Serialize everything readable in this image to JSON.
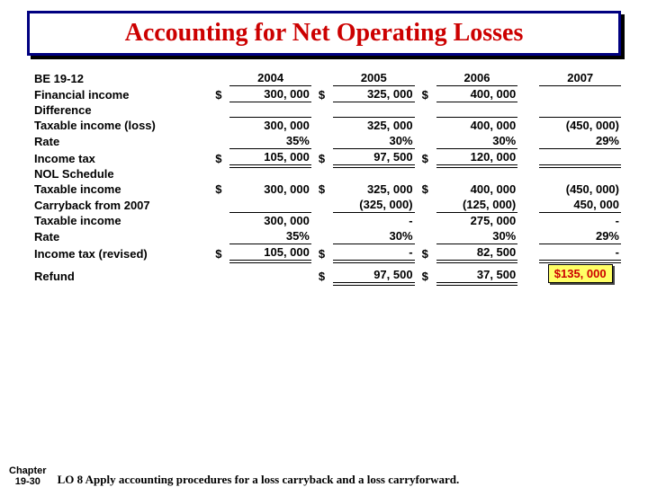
{
  "title": "Accounting for Net Operating Losses",
  "exercise": "BE 19-12",
  "years": [
    "2004",
    "2005",
    "2006",
    "2007"
  ],
  "top": {
    "financial_income": {
      "label": "Financial income",
      "vals": [
        "300, 000",
        "325, 000",
        "400, 000",
        ""
      ],
      "cur": [
        "$",
        "$",
        "$",
        ""
      ],
      "underline": "single"
    },
    "difference": {
      "label": "Difference",
      "vals": [
        "",
        "",
        "",
        ""
      ],
      "cur": [
        "",
        "",
        "",
        ""
      ],
      "underline": "single"
    },
    "taxable_income_loss": {
      "label": "Taxable income (loss)",
      "vals": [
        "300, 000",
        "325, 000",
        "400, 000",
        "(450, 000)"
      ],
      "cur": [
        "",
        "",
        "",
        ""
      ],
      "underline": "none"
    },
    "rate": {
      "label": "Rate",
      "vals": [
        "35%",
        "30%",
        "30%",
        "29%"
      ],
      "cur": [
        "",
        "",
        "",
        ""
      ],
      "underline": "single"
    },
    "income_tax": {
      "label": "Income tax",
      "vals": [
        "105, 000",
        "97, 500",
        "120, 000",
        ""
      ],
      "cur": [
        "$",
        "$",
        "$",
        ""
      ],
      "underline": "double"
    }
  },
  "mid_header": "NOL Schedule",
  "mid": {
    "taxable_income": {
      "label": "Taxable income",
      "vals": [
        "300, 000",
        "325, 000",
        "400, 000",
        "(450, 000)"
      ],
      "cur": [
        "$",
        "$",
        "$",
        ""
      ],
      "underline": "none"
    },
    "carryback": {
      "label": "Carryback from 2007",
      "vals": [
        "",
        "(325, 000)",
        "(125, 000)",
        "450, 000"
      ],
      "cur": [
        "",
        "",
        "",
        ""
      ],
      "underline": "single"
    },
    "taxable_income2": {
      "label": "Taxable income",
      "vals": [
        "300, 000",
        "-",
        "275, 000",
        "-"
      ],
      "cur": [
        "",
        "",
        "",
        ""
      ],
      "underline": "none"
    },
    "rate": {
      "label": "Rate",
      "vals": [
        "35%",
        "30%",
        "30%",
        "29%"
      ],
      "cur": [
        "",
        "",
        "",
        ""
      ],
      "underline": "single"
    },
    "income_tax_rev": {
      "label": "Income tax (revised)",
      "vals": [
        "105, 000",
        "-",
        "82, 500",
        "-"
      ],
      "cur": [
        "$",
        "$",
        "$",
        ""
      ],
      "underline": "double"
    }
  },
  "refund": {
    "label": "Refund",
    "vals": [
      "",
      "97, 500",
      "37, 500",
      "$135, 000"
    ],
    "cur": [
      "",
      "$",
      "$",
      ""
    ]
  },
  "footer": {
    "chapter_top": "Chapter",
    "chapter_bot": "19-30",
    "lo": "LO 8 Apply accounting procedures for a loss carryback and a loss carryforward."
  },
  "colors": {
    "title_text": "#cc0000",
    "title_border": "#000080",
    "refund_bg": "#ffff66",
    "refund_text": "#cc0000"
  }
}
